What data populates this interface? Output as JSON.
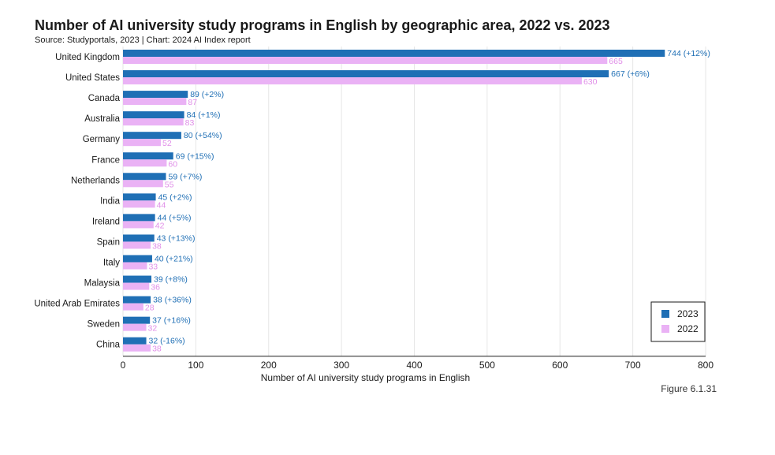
{
  "header": {
    "title": "Number of AI university study programs in English by geographic area, 2022 vs. 2023",
    "source": "Source: Studyportals, 2023 | Chart: 2024 AI Index report"
  },
  "footer": {
    "figure": "Figure 6.1.31"
  },
  "colors": {
    "s2023": "#1f6fb5",
    "s2022": "#eab2f5",
    "label2022": "#e08fe8",
    "grid": "#e6e6e6"
  },
  "chart_data": {
    "type": "bar",
    "orientation": "horizontal",
    "xlabel": "Number of AI university study programs in English",
    "ylabel": "",
    "xlim": [
      0,
      800
    ],
    "xticks": [
      0,
      100,
      200,
      300,
      400,
      500,
      600,
      700,
      800
    ],
    "grid": true,
    "legend_position": "bottom-right",
    "categories": [
      "United Kingdom",
      "United States",
      "Canada",
      "Australia",
      "Germany",
      "France",
      "Netherlands",
      "India",
      "Ireland",
      "Spain",
      "Italy",
      "Malaysia",
      "United Arab Emirates",
      "Sweden",
      "China"
    ],
    "series": [
      {
        "name": "2023",
        "values": [
          744,
          667,
          89,
          84,
          80,
          69,
          59,
          45,
          44,
          43,
          40,
          39,
          38,
          37,
          32
        ],
        "labels": [
          "744 (+12%)",
          "667 (+6%)",
          "89 (+2%)",
          "84 (+1%)",
          "80 (+54%)",
          "69 (+15%)",
          "59 (+7%)",
          "45 (+2%)",
          "44 (+5%)",
          "43 (+13%)",
          "40 (+21%)",
          "39 (+8%)",
          "38 (+36%)",
          "37 (+16%)",
          "32 (-16%)"
        ]
      },
      {
        "name": "2022",
        "values": [
          665,
          630,
          87,
          83,
          52,
          60,
          55,
          44,
          42,
          38,
          33,
          36,
          28,
          32,
          38
        ],
        "labels": [
          "665",
          "630",
          "87",
          "83",
          "52",
          "60",
          "55",
          "44",
          "42",
          "38",
          "33",
          "36",
          "28",
          "32",
          "38"
        ]
      }
    ]
  }
}
